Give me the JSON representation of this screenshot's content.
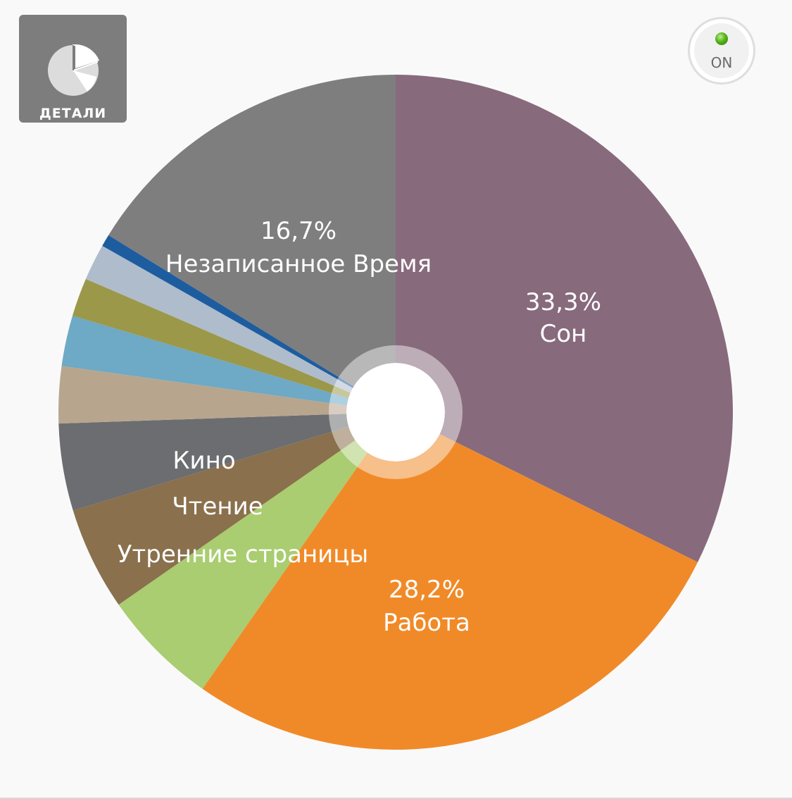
{
  "toolbar": {
    "details_label": "ДЕТАЛИ",
    "details_icon": "pie-chart-icon",
    "toggle_label": "ON",
    "toggle_led_color": "#4aa814"
  },
  "chart_data": {
    "type": "pie",
    "title": "",
    "donut": true,
    "start": "12 o'clock",
    "direction": "clockwise",
    "slices": [
      {
        "name": "Сон",
        "value": 33.3,
        "value_label": "33,3%",
        "label": "Сон",
        "color": "#886a7d"
      },
      {
        "name": "Работа",
        "value": 28.2,
        "value_label": "28,2%",
        "label": "Работа",
        "color": "#f08a28"
      },
      {
        "name": "Утренние страницы",
        "value": 5.8,
        "label": "Утренние страницы",
        "color": "#a9cd70"
      },
      {
        "name": "Чтение",
        "value": 5.1,
        "label": "Чтение",
        "color": "#8a704d"
      },
      {
        "name": "Кино",
        "value": 4.3,
        "label": "Кино",
        "color": "#6b6d70"
      },
      {
        "name": "",
        "value": 2.8,
        "color": "#b8a58d"
      },
      {
        "name": "",
        "value": 2.5,
        "color": "#6ea9c6"
      },
      {
        "name": "",
        "value": 1.9,
        "color": "#9b9849"
      },
      {
        "name": "",
        "value": 1.8,
        "color": "#afbccc"
      },
      {
        "name": "",
        "value": 0.6,
        "color": "#1d5d9f"
      },
      {
        "name": "Незаписанное Время",
        "value": 16.7,
        "value_label": "16,7%",
        "label": "Незаписанное Время",
        "color": "#7e7e7e"
      }
    ]
  }
}
